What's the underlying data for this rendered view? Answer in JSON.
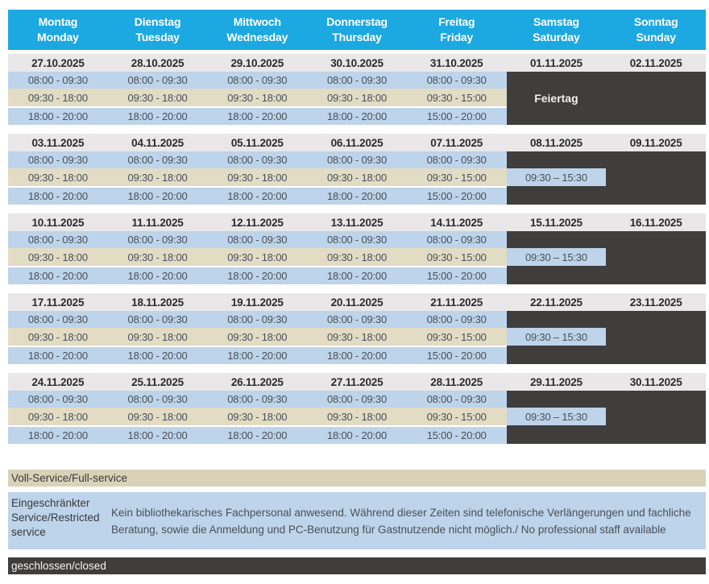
{
  "header": {
    "days": [
      {
        "de": "Montag",
        "en": "Monday"
      },
      {
        "de": "Dienstag",
        "en": "Tuesday"
      },
      {
        "de": "Mittwoch",
        "en": "Wednesday"
      },
      {
        "de": "Donnerstag",
        "en": "Thursday"
      },
      {
        "de": "Freitag",
        "en": "Friday"
      },
      {
        "de": "Samstag",
        "en": "Saturday"
      },
      {
        "de": "Sonntag",
        "en": "Sunday"
      }
    ]
  },
  "weeks": [
    {
      "dates": [
        "27.10.2025",
        "28.10.2025",
        "29.10.2025",
        "30.10.2025",
        "31.10.2025",
        "01.11.2025",
        "02.11.2025"
      ],
      "times": [
        [
          "08:00 - 09:30",
          "09:30 - 18:00",
          "18:00 - 20:00"
        ],
        [
          "08:00 - 09:30",
          "09:30 - 18:00",
          "18:00 - 20:00"
        ],
        [
          "08:00 - 09:30",
          "09:30 - 18:00",
          "18:00 - 20:00"
        ],
        [
          "08:00 - 09:30",
          "09:30 - 18:00",
          "18:00 - 20:00"
        ],
        [
          "08:00 - 09:30",
          "09:30 - 15:00",
          "15:00 - 20:00"
        ]
      ],
      "saturday_label": "Feiertag",
      "saturday_type": "holiday",
      "sunday_type": "closed"
    },
    {
      "dates": [
        "03.11.2025",
        "04.11.2025",
        "05.11.2025",
        "06.11.2025",
        "07.11.2025",
        "08.11.2025",
        "09.11.2025"
      ],
      "times": [
        [
          "08:00 - 09:30",
          "09:30 - 18:00",
          "18:00 - 20:00"
        ],
        [
          "08:00 - 09:30",
          "09:30 - 18:00",
          "18:00 - 20:00"
        ],
        [
          "08:00 - 09:30",
          "09:30 - 18:00",
          "18:00 - 20:00"
        ],
        [
          "08:00 - 09:30",
          "09:30 - 18:00",
          "18:00 - 20:00"
        ],
        [
          "08:00 - 09:30",
          "09:30 - 15:00",
          "15:00 - 20:00"
        ]
      ],
      "saturday_label": "09:30 – 15:30",
      "saturday_type": "open",
      "sunday_type": "closed"
    },
    {
      "dates": [
        "10.11.2025",
        "11.11.2025",
        "12.11.2025",
        "13.11.2025",
        "14.11.2025",
        "15.11.2025",
        "16.11.2025"
      ],
      "times": [
        [
          "08:00 - 09:30",
          "09:30 - 18:00",
          "18:00 - 20:00"
        ],
        [
          "08:00 - 09:30",
          "09:30 - 18:00",
          "18:00 - 20:00"
        ],
        [
          "08:00 - 09:30",
          "09:30 - 18:00",
          "18:00 - 20:00"
        ],
        [
          "08:00 - 09:30",
          "09:30 - 18:00",
          "18:00 - 20:00"
        ],
        [
          "08:00 - 09:30",
          "09:30 - 15:00",
          "15:00 - 20:00"
        ]
      ],
      "saturday_label": "09:30 – 15:30",
      "saturday_type": "open",
      "sunday_type": "closed"
    },
    {
      "dates": [
        "17.11.2025",
        "18.11.2025",
        "19.11.2025",
        "20.11.2025",
        "21.11.2025",
        "22.11.2025",
        "23.11.2025"
      ],
      "times": [
        [
          "08:00 - 09:30",
          "09:30 - 18:00",
          "18:00 - 20:00"
        ],
        [
          "08:00 - 09:30",
          "09:30 - 18:00",
          "18:00 - 20:00"
        ],
        [
          "08:00 - 09:30",
          "09:30 - 18:00",
          "18:00 - 20:00"
        ],
        [
          "08:00 - 09:30",
          "09:30 - 18:00",
          "18:00 - 20:00"
        ],
        [
          "08:00 - 09:30",
          "09:30 - 15:00",
          "15:00 - 20:00"
        ]
      ],
      "saturday_label": "09:30 – 15:30",
      "saturday_type": "open",
      "sunday_type": "closed"
    },
    {
      "dates": [
        "24.11.2025",
        "25.11.2025",
        "26.11.2025",
        "27.11.2025",
        "28.11.2025",
        "29.11.2025",
        "30.11.2025"
      ],
      "times": [
        [
          "08:00 - 09:30",
          "09:30 - 18:00",
          "18:00 - 20:00"
        ],
        [
          "08:00 - 09:30",
          "09:30 - 18:00",
          "18:00 - 20:00"
        ],
        [
          "08:00 - 09:30",
          "09:30 - 18:00",
          "18:00 - 20:00"
        ],
        [
          "08:00 - 09:30",
          "09:30 - 18:00",
          "18:00 - 20:00"
        ],
        [
          "08:00 - 09:30",
          "09:30 - 15:00",
          "15:00 - 20:00"
        ]
      ],
      "saturday_label": "09:30 – 15:30",
      "saturday_type": "open",
      "sunday_type": "closed"
    }
  ],
  "legend": {
    "full": "Voll-Service/Full-service",
    "restricted_label": "Eingeschränkter Service/Restricted service",
    "restricted_description": "Kein bibliothekarisches Fachpersonal anwesend. Während dieser Zeiten sind telefonische Verlängerungen und fachliche Beratung, sowie die Anmeldung und PC-Benutzung für Gastnutzende nicht möglich./ No professional staff available",
    "closed": "geschlossen/closed"
  },
  "colors": {
    "header_bg": "#1CA8E0",
    "date_row_bg": "#E9E7E7",
    "open_restricted_bg": "#BDD4EA",
    "full_service_bg": "#E2DCC4",
    "closed_bg": "#403D3D"
  }
}
